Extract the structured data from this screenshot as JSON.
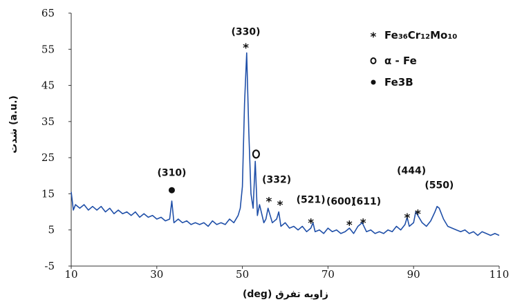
{
  "chart_data": {
    "type": "line",
    "xlabel": "(deg) زاویه تفرق",
    "ylabel": "شدت (a.u.)",
    "xlim": [
      10,
      110
    ],
    "ylim": [
      -5,
      65
    ],
    "x_ticks": [
      "10",
      "30",
      "50",
      "70",
      "90",
      "110"
    ],
    "y_ticks": [
      "-5",
      "5",
      "15",
      "25",
      "35",
      "45",
      "55",
      "65"
    ],
    "series_color": "#1f4fa8",
    "series": [
      {
        "x": [
          10,
          10.5,
          11,
          12,
          13,
          14,
          15,
          16,
          17,
          18,
          19,
          20,
          21,
          22,
          23,
          24,
          25,
          26,
          27,
          28,
          29,
          30,
          31,
          32,
          33,
          33.5,
          34,
          35,
          36,
          37,
          38,
          39,
          40,
          41,
          42,
          43,
          44,
          45,
          46,
          47,
          48,
          49,
          49.5,
          50,
          50.5,
          51,
          51.5,
          52,
          52.5,
          53,
          53.5,
          54,
          55,
          55.5,
          56,
          56.5,
          57,
          58,
          58.5,
          59,
          60,
          61,
          62,
          63,
          64,
          65,
          66,
          66.5,
          67,
          68,
          69,
          70,
          71,
          72,
          73,
          74,
          75,
          76,
          77,
          78,
          79,
          80,
          81,
          82,
          83,
          84,
          85,
          86,
          87,
          88,
          88.5,
          89,
          90,
          90.5,
          91,
          92,
          93,
          94,
          95,
          95.5,
          96,
          97,
          98,
          99,
          100,
          101,
          102,
          103,
          104,
          105,
          106,
          107,
          108,
          109,
          110
        ],
        "y": [
          15.5,
          10.5,
          12,
          11,
          12,
          10.5,
          11.5,
          10.5,
          11.5,
          10,
          11,
          9.5,
          10.5,
          9.5,
          10,
          9,
          10,
          8.5,
          9.5,
          8.5,
          9,
          8,
          8.5,
          7.5,
          8,
          13,
          7,
          8,
          7,
          7.5,
          6.5,
          7,
          6.5,
          7,
          6,
          7.5,
          6.5,
          7,
          6.5,
          8,
          7,
          9,
          11,
          17,
          40,
          54,
          32,
          15,
          11,
          24,
          9,
          12,
          7,
          8,
          11,
          9,
          7,
          8,
          10,
          6,
          7,
          5.5,
          6,
          5,
          6,
          4.5,
          5.5,
          7,
          4.5,
          5,
          4,
          5.5,
          4.5,
          5,
          4,
          4.5,
          5.5,
          4,
          6,
          7,
          4.5,
          5,
          4,
          4.5,
          4,
          5,
          4.5,
          6,
          5,
          6.5,
          8.5,
          6,
          7,
          10,
          9,
          7,
          6,
          7.5,
          10,
          11.5,
          11,
          8,
          6,
          5.5,
          5,
          4.5,
          5,
          4,
          4.5,
          3.5,
          4.5,
          4,
          3.5,
          4,
          3.5
        ]
      }
    ],
    "annotations": [
      {
        "text": "(330)",
        "x": 50.8,
        "y": 59
      },
      {
        "text": "(310)",
        "x": 33.5,
        "y": 20
      },
      {
        "text": "(332)",
        "x": 58,
        "y": 18
      },
      {
        "text": "(521)",
        "x": 66,
        "y": 12.5
      },
      {
        "text": "(600)",
        "x": 73,
        "y": 12
      },
      {
        "text": "(611)",
        "x": 79,
        "y": 12
      },
      {
        "text": "(444)",
        "x": 89.5,
        "y": 20.5
      },
      {
        "text": "(550)",
        "x": 96,
        "y": 16.5
      }
    ],
    "markers": [
      {
        "symbol": "*",
        "x": 50.8,
        "y": 56
      },
      {
        "symbol": "●",
        "x": 33.5,
        "y": 16
      },
      {
        "symbol": "o",
        "x": 53.2,
        "y": 26
      },
      {
        "symbol": "*",
        "x": 56.2,
        "y": 13.5
      },
      {
        "symbol": "*",
        "x": 58.8,
        "y": 12.5
      },
      {
        "symbol": "*",
        "x": 66,
        "y": 7.5
      },
      {
        "symbol": "*",
        "x": 75,
        "y": 7
      },
      {
        "symbol": "*",
        "x": 78.2,
        "y": 7.5
      },
      {
        "symbol": "*",
        "x": 88.5,
        "y": 9
      },
      {
        "symbol": "*",
        "x": 91,
        "y": 10
      }
    ],
    "legend": [
      {
        "symbol": "*",
        "label_parts": [
          [
            "Fe",
            false
          ],
          [
            "36",
            true
          ],
          [
            "Cr",
            false
          ],
          [
            "12",
            true
          ],
          [
            "Mo",
            false
          ],
          [
            "10",
            true
          ]
        ]
      },
      {
        "symbol": "o",
        "label_parts": [
          [
            "α - Fe",
            false
          ]
        ]
      },
      {
        "symbol": "●",
        "label_parts": [
          [
            "Fe3B",
            false
          ]
        ]
      }
    ],
    "legend_position": "top-right",
    "grid": false
  }
}
